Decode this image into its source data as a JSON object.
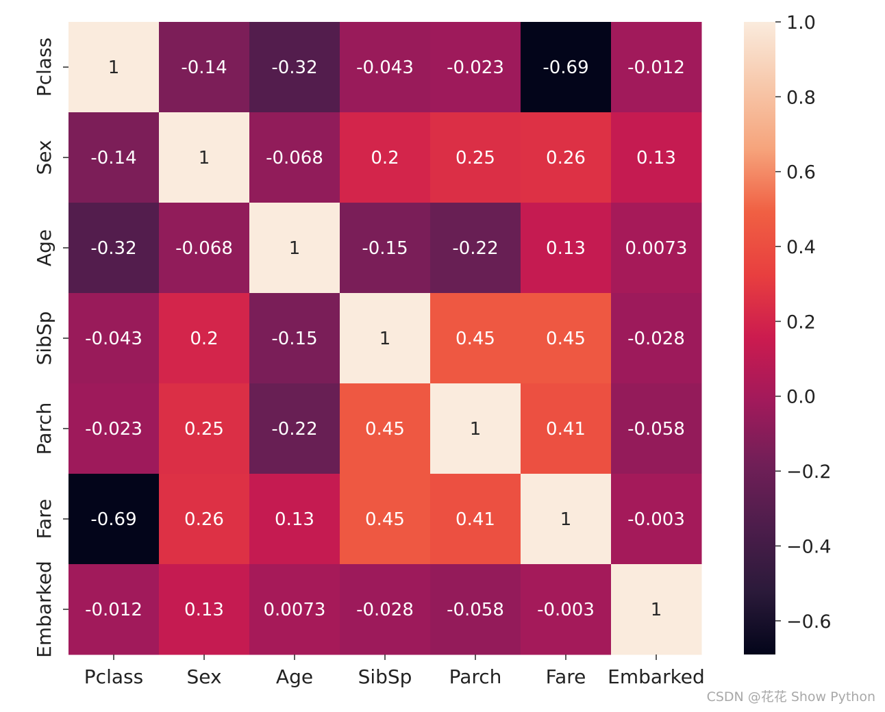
{
  "chart_data": {
    "type": "heatmap",
    "title": "",
    "xlabel": "",
    "ylabel": "",
    "x_labels": [
      "Pclass",
      "Sex",
      "Age",
      "SibSp",
      "Parch",
      "Fare",
      "Embarked"
    ],
    "y_labels": [
      "Pclass",
      "Sex",
      "Age",
      "SibSp",
      "Parch",
      "Fare",
      "Embarked"
    ],
    "values": [
      [
        1,
        -0.14,
        -0.32,
        -0.043,
        -0.023,
        -0.69,
        -0.012
      ],
      [
        -0.14,
        1,
        -0.068,
        0.2,
        0.25,
        0.26,
        0.13
      ],
      [
        -0.32,
        -0.068,
        1,
        -0.15,
        -0.22,
        0.13,
        0.0073
      ],
      [
        -0.043,
        0.2,
        -0.15,
        1,
        0.45,
        0.45,
        -0.028
      ],
      [
        -0.023,
        0.25,
        -0.22,
        0.45,
        1,
        0.41,
        -0.058
      ],
      [
        -0.69,
        0.26,
        0.13,
        0.45,
        0.41,
        1,
        -0.003
      ],
      [
        -0.012,
        0.13,
        0.0073,
        -0.028,
        -0.058,
        -0.003,
        1
      ]
    ],
    "cell_labels": [
      [
        "1",
        "-0.14",
        "-0.32",
        "-0.043",
        "-0.023",
        "-0.69",
        "-0.012"
      ],
      [
        "-0.14",
        "1",
        "-0.068",
        "0.2",
        "0.25",
        "0.26",
        "0.13"
      ],
      [
        "-0.32",
        "-0.068",
        "1",
        "-0.15",
        "-0.22",
        "0.13",
        "0.0073"
      ],
      [
        "-0.043",
        "0.2",
        "-0.15",
        "1",
        "0.45",
        "0.45",
        "-0.028"
      ],
      [
        "-0.023",
        "0.25",
        "-0.22",
        "0.45",
        "1",
        "0.41",
        "-0.058"
      ],
      [
        "-0.69",
        "0.26",
        "0.13",
        "0.45",
        "0.41",
        "1",
        "-0.003"
      ],
      [
        "-0.012",
        "0.13",
        "0.0073",
        "-0.028",
        "-0.058",
        "-0.003",
        "1"
      ]
    ],
    "colorbar": {
      "range": [
        -0.69,
        1.0
      ],
      "ticks": [
        1.0,
        0.8,
        0.6,
        0.4,
        0.2,
        0.0,
        -0.2,
        -0.4,
        -0.6
      ],
      "tick_labels": [
        "1.0",
        "0.8",
        "0.6",
        "0.4",
        "0.2",
        "0.0",
        "−0.2",
        "−0.4",
        "−0.6"
      ],
      "colormap": "rocket",
      "gradient_colors": [
        "#03051a",
        "#2b1a3a",
        "#4c1d4b",
        "#701f57",
        "#a11a5b",
        "#cb1b4f",
        "#e83f3f",
        "#f06043",
        "#f6a47c",
        "#f7c8ab",
        "#faebdd"
      ]
    },
    "annotation_dark_text_color": "#262626",
    "annotation_light_text_color": "#ffffff"
  },
  "watermark": "CSDN @花花 Show Python"
}
